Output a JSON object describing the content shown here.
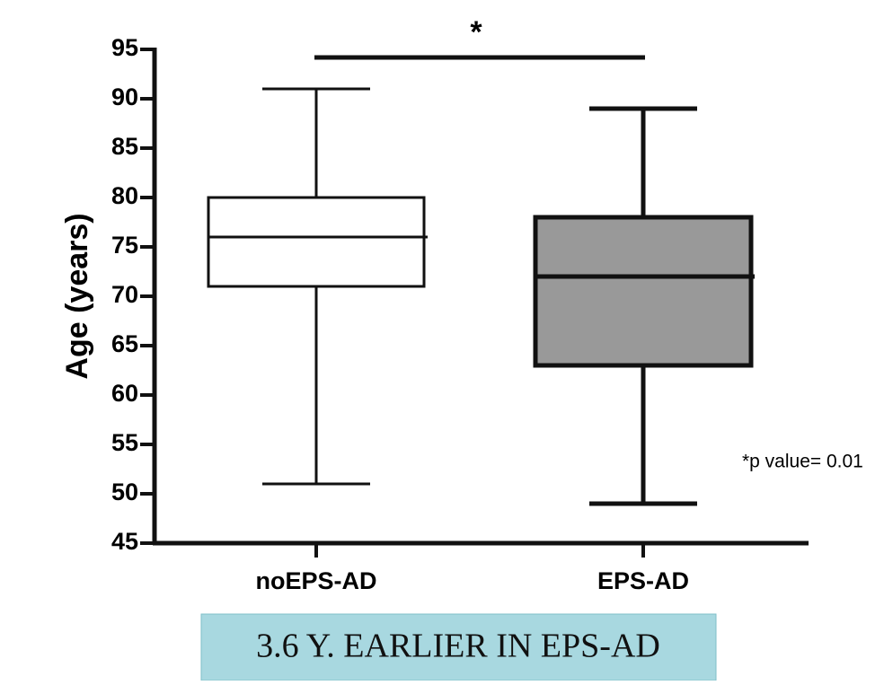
{
  "chart_data": {
    "type": "box",
    "y_label": "Age (years)",
    "categories": [
      "noEPS-AD",
      "EPS-AD"
    ],
    "boxes": [
      {
        "whislo": 51,
        "q1": 71,
        "med": 76,
        "q3": 80,
        "whishi": 91,
        "color": "#ffffff"
      },
      {
        "whislo": 49,
        "q1": 63,
        "med": 72,
        "q3": 78,
        "whishi": 89,
        "color": "#999999"
      }
    ],
    "ylim": [
      45,
      95
    ],
    "yticks": [
      45,
      50,
      55,
      60,
      65,
      70,
      75,
      80,
      85,
      90,
      95
    ],
    "significance": "*",
    "annotation": "*p value= 0.01"
  },
  "caption": "3.6 Y. EARLIER IN EPS-AD"
}
